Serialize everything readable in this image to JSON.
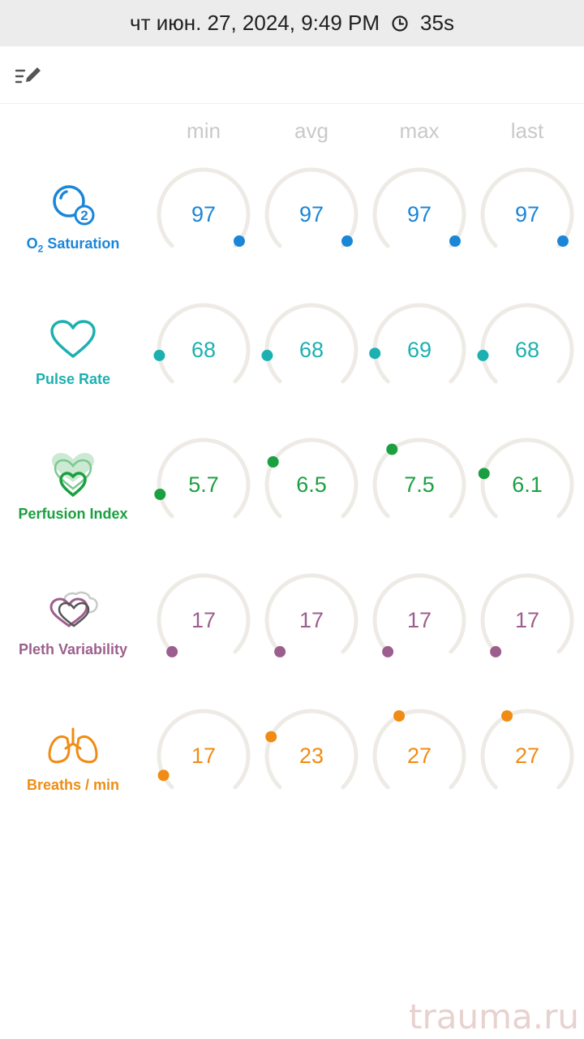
{
  "status_bar": {
    "datetime": "чт июн. 27, 2024, 9:49 PM",
    "duration": "35s",
    "clock_icon": "clock-icon"
  },
  "toolbar": {
    "edit_icon": "edit-list-icon"
  },
  "columns": [
    "min",
    "avg",
    "max",
    "last"
  ],
  "metrics": [
    {
      "id": "o2",
      "label_main": "O",
      "label_sub": "2",
      "label_rest": " Saturation",
      "color": "#1a86d8",
      "icon": "o2-bubble-icon",
      "values": [
        "97",
        "97",
        "97",
        "97"
      ],
      "levels": [
        0.97,
        0.97,
        0.97,
        0.97
      ]
    },
    {
      "id": "pulse",
      "label": "Pulse Rate",
      "color": "#1cb0b0",
      "icon": "heart-icon",
      "values": [
        "68",
        "68",
        "69",
        "68"
      ],
      "levels": [
        0.14,
        0.14,
        0.15,
        0.14
      ]
    },
    {
      "id": "pi",
      "label": "Perfusion Index",
      "color": "#1aa040",
      "icon": "perfusion-hearts-icon",
      "values": [
        "5.7",
        "6.5",
        "7.5",
        "6.1"
      ],
      "levels": [
        0.12,
        0.28,
        0.36,
        0.22
      ]
    },
    {
      "id": "pvi",
      "label": "Pleth Variability",
      "color": "#9c5f8d",
      "icon": "pleth-hearts-icon",
      "values": [
        "17",
        "17",
        "17",
        "17"
      ],
      "levels": [
        0.0,
        0.0,
        0.0,
        0.0
      ]
    },
    {
      "id": "rr",
      "label": "Breaths / min",
      "color": "#f08c14",
      "icon": "lungs-icon",
      "values": [
        "17",
        "23",
        "27",
        "27"
      ],
      "levels": [
        0.07,
        0.26,
        0.4,
        0.4
      ]
    }
  ],
  "watermark": "trauma.ru"
}
